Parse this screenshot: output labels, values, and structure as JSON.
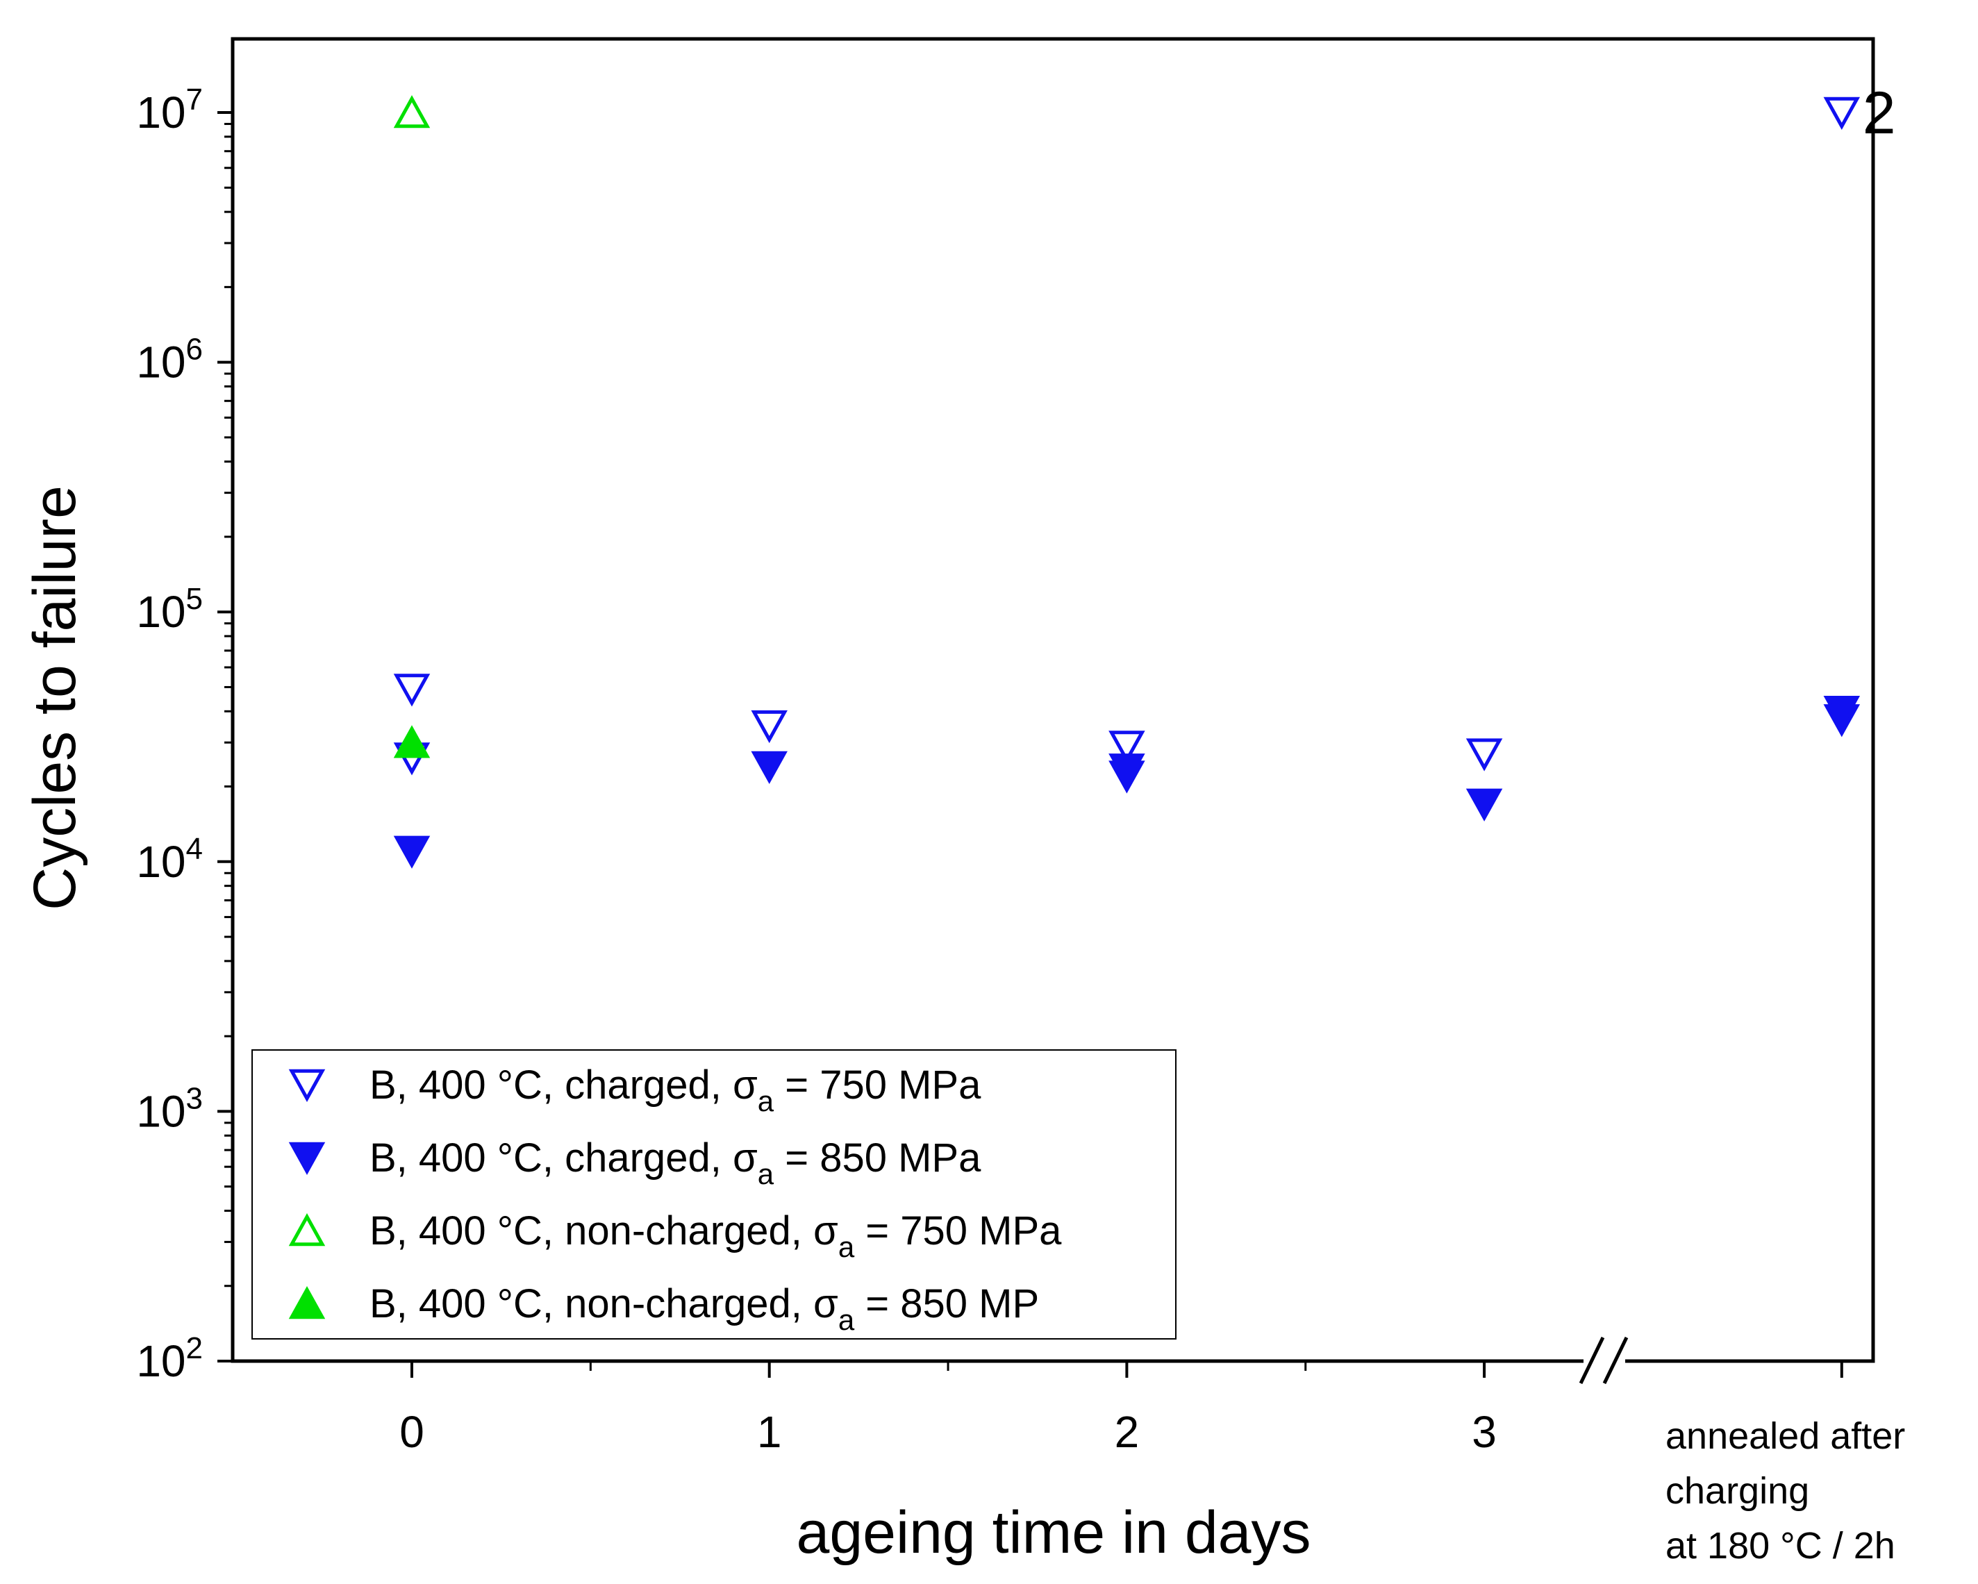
{
  "chart_data": {
    "type": "scatter",
    "title": "",
    "xlabel": "ageing time in days",
    "ylabel": "Cycles to failure",
    "yscale": "log",
    "ylim": [
      100,
      20000000
    ],
    "xlim": [
      -0.5,
      4.2
    ],
    "x_ticks": [
      0,
      1,
      2,
      3
    ],
    "x_tick_labels": [
      "0",
      "1",
      "2",
      "3"
    ],
    "extra_category": {
      "x": 4,
      "label_lines": [
        "annealed after",
        "charging",
        "at 180 °C / 2h"
      ]
    },
    "y_ticks": [
      {
        "value": 100,
        "base": "10",
        "exp": "2"
      },
      {
        "value": 1000,
        "base": "10",
        "exp": "3"
      },
      {
        "value": 10000,
        "base": "10",
        "exp": "4"
      },
      {
        "value": 100000,
        "base": "10",
        "exp": "5"
      },
      {
        "value": 1000000,
        "base": "10",
        "exp": "6"
      },
      {
        "value": 10000000,
        "base": "10",
        "exp": "7"
      }
    ],
    "axis_break": "between 3 and annealed",
    "series": [
      {
        "name": "B, 400 °C, charged, σa = 750 MPa",
        "label_pre": "B, 400 °C, charged, ",
        "label_sym": "σ",
        "label_sub": "a",
        "label_post": " = 750 MPa",
        "marker": "triangle-down",
        "filled": false,
        "color": "#1010F0",
        "points": [
          [
            0,
            49000
          ],
          [
            0,
            26000
          ],
          [
            1,
            35000
          ],
          [
            2,
            29000
          ],
          [
            3,
            27000
          ],
          [
            4,
            10000000
          ]
        ]
      },
      {
        "name": "B, 400 °C, charged, σa = 850 MPa",
        "label_pre": "B, 400 °C, charged, ",
        "label_sym": "σ",
        "label_sub": "a",
        "label_post": " = 850 MPa",
        "marker": "triangle-down",
        "filled": true,
        "color": "#1010F0",
        "points": [
          [
            0,
            11000
          ],
          [
            1,
            24000
          ],
          [
            2,
            23500
          ],
          [
            2,
            22000
          ],
          [
            3,
            17000
          ],
          [
            4,
            40000
          ],
          [
            4,
            37000
          ]
        ]
      },
      {
        "name": "B, 400 °C, non-charged, σa = 750 MPa",
        "label_pre": "B, 400 °C, non-charged, ",
        "label_sym": "σ",
        "label_sub": "a",
        "label_post": " = 750 MPa",
        "marker": "triangle-up",
        "filled": false,
        "color": "#00E000",
        "points": [
          [
            0,
            10000000
          ]
        ]
      },
      {
        "name": "B, 400 °C, non-charged, σa = 850 MP",
        "label_pre": "B, 400 °C, non-charged, ",
        "label_sym": "σ",
        "label_sub": "a",
        "label_post": " = 850 MP",
        "marker": "triangle-up",
        "filled": true,
        "color": "#00E000",
        "points": [
          [
            0,
            30000
          ]
        ]
      }
    ],
    "annotations": [
      {
        "text": "2",
        "x": 4,
        "y": 10000000,
        "color": "#1010F0",
        "note": "runout count"
      }
    ],
    "legend_position": "bottom-left"
  }
}
